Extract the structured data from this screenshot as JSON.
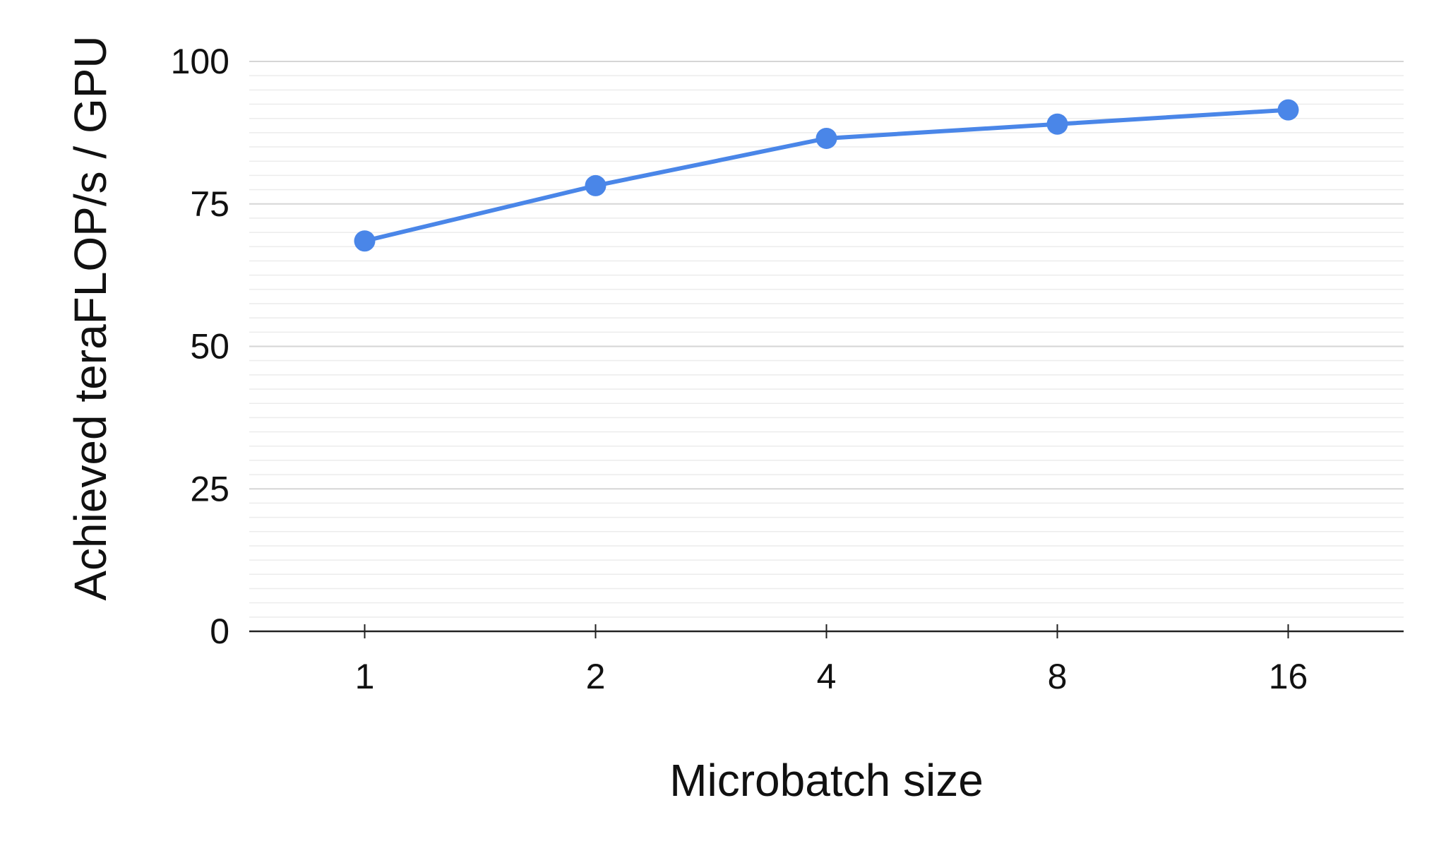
{
  "chart_data": {
    "type": "line",
    "title": "",
    "xlabel": "Microbatch size",
    "ylabel": "Achieved teraFLOP/s / GPU",
    "categories": [
      "1",
      "2",
      "4",
      "8",
      "16"
    ],
    "series": [
      {
        "values": [
          68.5,
          78.2,
          86.5,
          89.0,
          91.5
        ],
        "color": "#4a86e8"
      }
    ],
    "ylim": [
      0,
      100
    ],
    "yticks": [
      "0",
      "25",
      "50",
      "75",
      "100"
    ],
    "grid": true,
    "legend": "none"
  }
}
